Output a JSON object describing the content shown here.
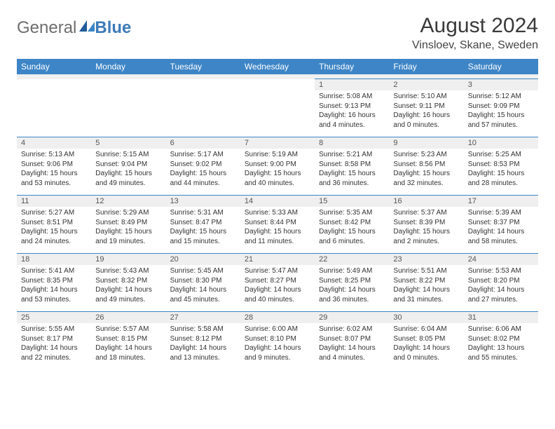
{
  "brand": {
    "part1": "General",
    "part2": "Blue"
  },
  "header": {
    "title": "August 2024",
    "location": "Vinsloev, Skane, Sweden"
  },
  "dow": [
    "Sunday",
    "Monday",
    "Tuesday",
    "Wednesday",
    "Thursday",
    "Friday",
    "Saturday"
  ],
  "colors": {
    "header_bg": "#3d85c6",
    "header_fg": "#ffffff",
    "num_bg": "#efefef",
    "rule": "#3d85c6",
    "text": "#333333"
  },
  "weeks": [
    [
      null,
      null,
      null,
      null,
      {
        "n": "1",
        "sr": "Sunrise: 5:08 AM",
        "ss": "Sunset: 9:13 PM",
        "d1": "Daylight: 16 hours",
        "d2": "and 4 minutes."
      },
      {
        "n": "2",
        "sr": "Sunrise: 5:10 AM",
        "ss": "Sunset: 9:11 PM",
        "d1": "Daylight: 16 hours",
        "d2": "and 0 minutes."
      },
      {
        "n": "3",
        "sr": "Sunrise: 5:12 AM",
        "ss": "Sunset: 9:09 PM",
        "d1": "Daylight: 15 hours",
        "d2": "and 57 minutes."
      }
    ],
    [
      {
        "n": "4",
        "sr": "Sunrise: 5:13 AM",
        "ss": "Sunset: 9:06 PM",
        "d1": "Daylight: 15 hours",
        "d2": "and 53 minutes."
      },
      {
        "n": "5",
        "sr": "Sunrise: 5:15 AM",
        "ss": "Sunset: 9:04 PM",
        "d1": "Daylight: 15 hours",
        "d2": "and 49 minutes."
      },
      {
        "n": "6",
        "sr": "Sunrise: 5:17 AM",
        "ss": "Sunset: 9:02 PM",
        "d1": "Daylight: 15 hours",
        "d2": "and 44 minutes."
      },
      {
        "n": "7",
        "sr": "Sunrise: 5:19 AM",
        "ss": "Sunset: 9:00 PM",
        "d1": "Daylight: 15 hours",
        "d2": "and 40 minutes."
      },
      {
        "n": "8",
        "sr": "Sunrise: 5:21 AM",
        "ss": "Sunset: 8:58 PM",
        "d1": "Daylight: 15 hours",
        "d2": "and 36 minutes."
      },
      {
        "n": "9",
        "sr": "Sunrise: 5:23 AM",
        "ss": "Sunset: 8:56 PM",
        "d1": "Daylight: 15 hours",
        "d2": "and 32 minutes."
      },
      {
        "n": "10",
        "sr": "Sunrise: 5:25 AM",
        "ss": "Sunset: 8:53 PM",
        "d1": "Daylight: 15 hours",
        "d2": "and 28 minutes."
      }
    ],
    [
      {
        "n": "11",
        "sr": "Sunrise: 5:27 AM",
        "ss": "Sunset: 8:51 PM",
        "d1": "Daylight: 15 hours",
        "d2": "and 24 minutes."
      },
      {
        "n": "12",
        "sr": "Sunrise: 5:29 AM",
        "ss": "Sunset: 8:49 PM",
        "d1": "Daylight: 15 hours",
        "d2": "and 19 minutes."
      },
      {
        "n": "13",
        "sr": "Sunrise: 5:31 AM",
        "ss": "Sunset: 8:47 PM",
        "d1": "Daylight: 15 hours",
        "d2": "and 15 minutes."
      },
      {
        "n": "14",
        "sr": "Sunrise: 5:33 AM",
        "ss": "Sunset: 8:44 PM",
        "d1": "Daylight: 15 hours",
        "d2": "and 11 minutes."
      },
      {
        "n": "15",
        "sr": "Sunrise: 5:35 AM",
        "ss": "Sunset: 8:42 PM",
        "d1": "Daylight: 15 hours",
        "d2": "and 6 minutes."
      },
      {
        "n": "16",
        "sr": "Sunrise: 5:37 AM",
        "ss": "Sunset: 8:39 PM",
        "d1": "Daylight: 15 hours",
        "d2": "and 2 minutes."
      },
      {
        "n": "17",
        "sr": "Sunrise: 5:39 AM",
        "ss": "Sunset: 8:37 PM",
        "d1": "Daylight: 14 hours",
        "d2": "and 58 minutes."
      }
    ],
    [
      {
        "n": "18",
        "sr": "Sunrise: 5:41 AM",
        "ss": "Sunset: 8:35 PM",
        "d1": "Daylight: 14 hours",
        "d2": "and 53 minutes."
      },
      {
        "n": "19",
        "sr": "Sunrise: 5:43 AM",
        "ss": "Sunset: 8:32 PM",
        "d1": "Daylight: 14 hours",
        "d2": "and 49 minutes."
      },
      {
        "n": "20",
        "sr": "Sunrise: 5:45 AM",
        "ss": "Sunset: 8:30 PM",
        "d1": "Daylight: 14 hours",
        "d2": "and 45 minutes."
      },
      {
        "n": "21",
        "sr": "Sunrise: 5:47 AM",
        "ss": "Sunset: 8:27 PM",
        "d1": "Daylight: 14 hours",
        "d2": "and 40 minutes."
      },
      {
        "n": "22",
        "sr": "Sunrise: 5:49 AM",
        "ss": "Sunset: 8:25 PM",
        "d1": "Daylight: 14 hours",
        "d2": "and 36 minutes."
      },
      {
        "n": "23",
        "sr": "Sunrise: 5:51 AM",
        "ss": "Sunset: 8:22 PM",
        "d1": "Daylight: 14 hours",
        "d2": "and 31 minutes."
      },
      {
        "n": "24",
        "sr": "Sunrise: 5:53 AM",
        "ss": "Sunset: 8:20 PM",
        "d1": "Daylight: 14 hours",
        "d2": "and 27 minutes."
      }
    ],
    [
      {
        "n": "25",
        "sr": "Sunrise: 5:55 AM",
        "ss": "Sunset: 8:17 PM",
        "d1": "Daylight: 14 hours",
        "d2": "and 22 minutes."
      },
      {
        "n": "26",
        "sr": "Sunrise: 5:57 AM",
        "ss": "Sunset: 8:15 PM",
        "d1": "Daylight: 14 hours",
        "d2": "and 18 minutes."
      },
      {
        "n": "27",
        "sr": "Sunrise: 5:58 AM",
        "ss": "Sunset: 8:12 PM",
        "d1": "Daylight: 14 hours",
        "d2": "and 13 minutes."
      },
      {
        "n": "28",
        "sr": "Sunrise: 6:00 AM",
        "ss": "Sunset: 8:10 PM",
        "d1": "Daylight: 14 hours",
        "d2": "and 9 minutes."
      },
      {
        "n": "29",
        "sr": "Sunrise: 6:02 AM",
        "ss": "Sunset: 8:07 PM",
        "d1": "Daylight: 14 hours",
        "d2": "and 4 minutes."
      },
      {
        "n": "30",
        "sr": "Sunrise: 6:04 AM",
        "ss": "Sunset: 8:05 PM",
        "d1": "Daylight: 14 hours",
        "d2": "and 0 minutes."
      },
      {
        "n": "31",
        "sr": "Sunrise: 6:06 AM",
        "ss": "Sunset: 8:02 PM",
        "d1": "Daylight: 13 hours",
        "d2": "and 55 minutes."
      }
    ]
  ]
}
